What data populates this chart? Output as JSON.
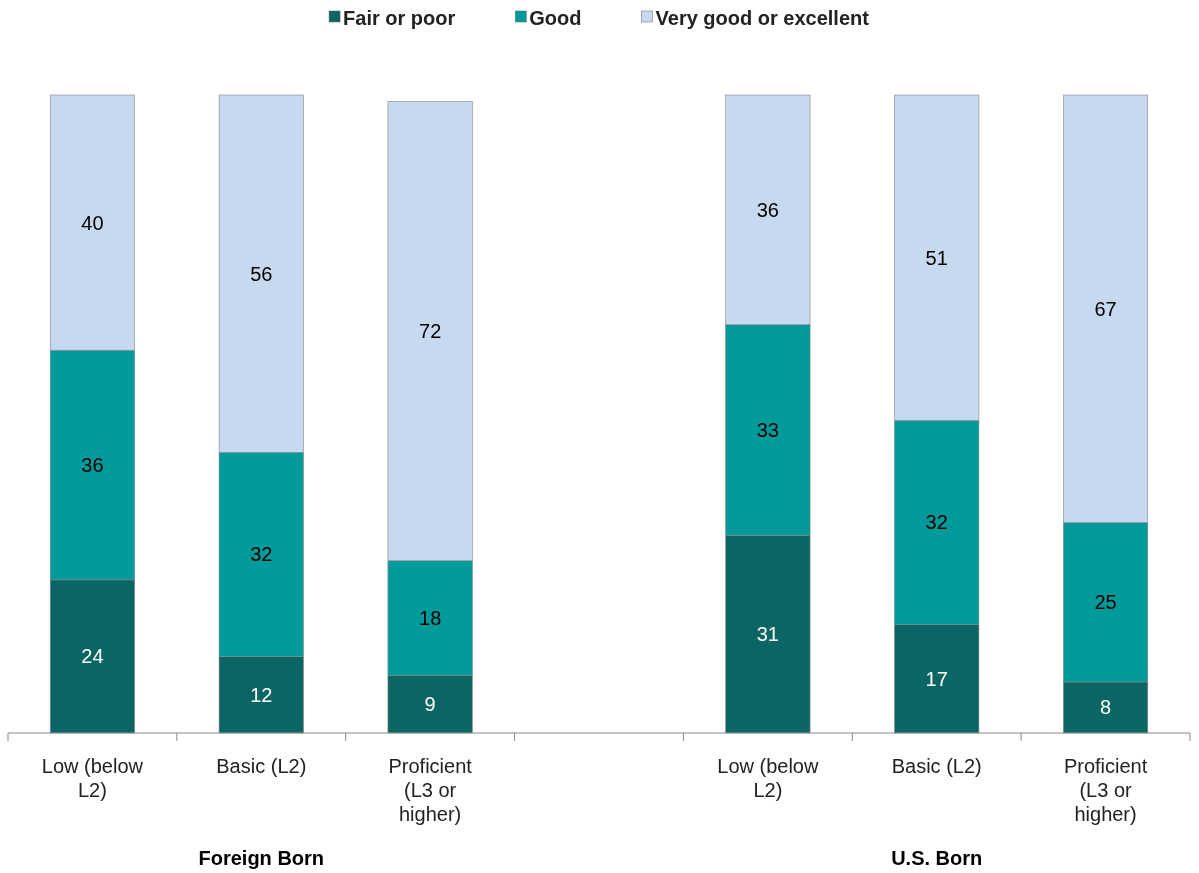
{
  "chart_data": {
    "type": "bar",
    "stacked": true,
    "categories": [
      "Low (below L2)",
      "Basic (L2)",
      "Proficient (L3 or higher)",
      null,
      "Low (below L2)",
      "Basic (L2)",
      "Proficient (L3 or higher)"
    ],
    "series": [
      {
        "name": "Fair or poor",
        "color": "#0b6565",
        "values": [
          24,
          12,
          9,
          null,
          31,
          17,
          8
        ]
      },
      {
        "name": "Good",
        "color": "#009a9a",
        "values": [
          36,
          32,
          18,
          null,
          33,
          32,
          25
        ]
      },
      {
        "name": "Very good or excellent",
        "color": "#c6d9ef",
        "values": [
          40,
          56,
          72,
          null,
          36,
          51,
          67
        ]
      }
    ],
    "ylim": [
      0,
      100
    ],
    "tick_labels": "x",
    "data_labels": true,
    "legend": "top",
    "annotations": [
      "Foreign Born",
      "U.S. Born"
    ]
  }
}
